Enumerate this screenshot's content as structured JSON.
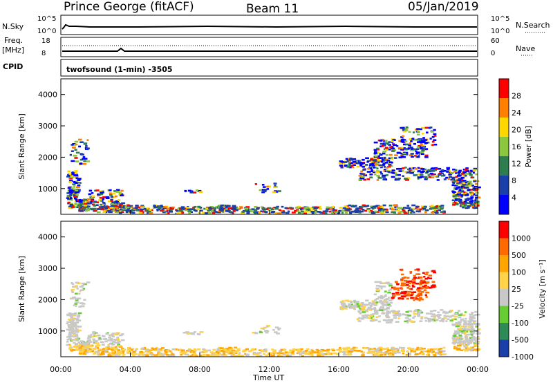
{
  "header": {
    "station": "Prince George (fitACF)",
    "beam": "Beam 11",
    "date": "05/Jan/2019"
  },
  "top_panels": {
    "nsky_label": "N.Sky",
    "nsky_ticks": [
      "10^5",
      "10^0"
    ],
    "nsearch_label": "N.Search",
    "nsearch_ticks": [
      "10^5",
      "10^0"
    ],
    "freq_label_1": "Freq.",
    "freq_label_2": "[MHz]",
    "freq_ticks": [
      "18",
      "8"
    ],
    "nave_label": "Nave",
    "nave_ticks": [
      "60",
      "0"
    ],
    "cpid_label": "CPID",
    "cpid_text": "twofsound (1-min) -3505"
  },
  "chart_data": [
    {
      "type": "heatmap",
      "name": "power",
      "ylabel": "Slant Range [km]",
      "ylim": [
        180,
        4500
      ],
      "yticks": [
        "4000",
        "3000",
        "2000",
        "1000"
      ],
      "colorbar_label": "Power [dB]",
      "colorbar_ticks": [
        "28",
        "24",
        "20",
        "16",
        "12",
        "8",
        "4"
      ],
      "colors": [
        "#0000ff",
        "#1b3fa8",
        "#2e7d4f",
        "#8cc63f",
        "#ffd700",
        "#ff8000",
        "#ff0000"
      ],
      "xlim_hours": [
        0,
        24
      ]
    },
    {
      "type": "heatmap",
      "name": "velocity",
      "ylabel": "Slant Range [km]",
      "ylim": [
        180,
        4500
      ],
      "yticks": [
        "4000",
        "3000",
        "2000",
        "1000"
      ],
      "colorbar_label": "Velocity [m s⁻¹]",
      "colorbar_ticks": [
        "1000",
        "500",
        "100",
        "25",
        "-25",
        "-100",
        "-500",
        "-1000"
      ],
      "colors": [
        "#1b3fa8",
        "#2e8b57",
        "#66cc33",
        "#c8c8c8",
        "#ffd24a",
        "#ffa500",
        "#ff6a00",
        "#ff0000"
      ],
      "xlim_hours": [
        0,
        24
      ]
    }
  ],
  "time_axis": {
    "ticks": [
      "00:00",
      "04:00",
      "08:00",
      "12:00",
      "16:00",
      "20:00",
      "00:00"
    ],
    "label": "Time UT"
  }
}
